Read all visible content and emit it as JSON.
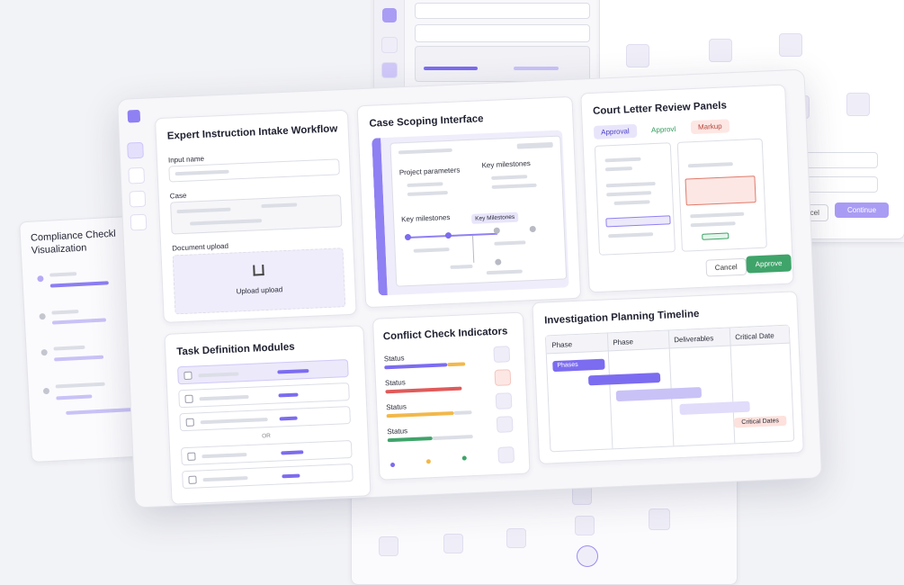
{
  "background": {
    "left_card": {
      "title_lines": [
        "Compliance Checkl",
        "Visualization"
      ]
    },
    "right_card": {
      "buttons": [
        "Cancel",
        "Continue"
      ]
    }
  },
  "intake": {
    "title": "Expert Instruction Intake Workflow",
    "input_label": "Input name",
    "case_label": "Case",
    "upload_label": "Document upload",
    "upload_button": "Upload upload"
  },
  "scoping": {
    "title": "Case Scoping Interface",
    "labels": [
      "Project parameters",
      "Key milestones",
      "Key milestones"
    ],
    "tooltip": "Key Milestones"
  },
  "review": {
    "title": "Court Letter Review Panels",
    "tabs": [
      "Approval",
      "Approvl",
      "Markup"
    ],
    "buttons": [
      "Cancel",
      "Approve"
    ]
  },
  "tasks": {
    "title": "Task Definition Modules",
    "separator": "OR"
  },
  "conflict": {
    "title": "Conflict Check Indicators",
    "status_labels": [
      "Status",
      "Status",
      "Status",
      "Status"
    ]
  },
  "timeline": {
    "title": "Investigation Planning Timeline",
    "columns": [
      "Phase",
      "Phase",
      "Deliverables",
      "Critical Date"
    ],
    "bar_label": "Phases",
    "tag": "Critical Dates"
  }
}
